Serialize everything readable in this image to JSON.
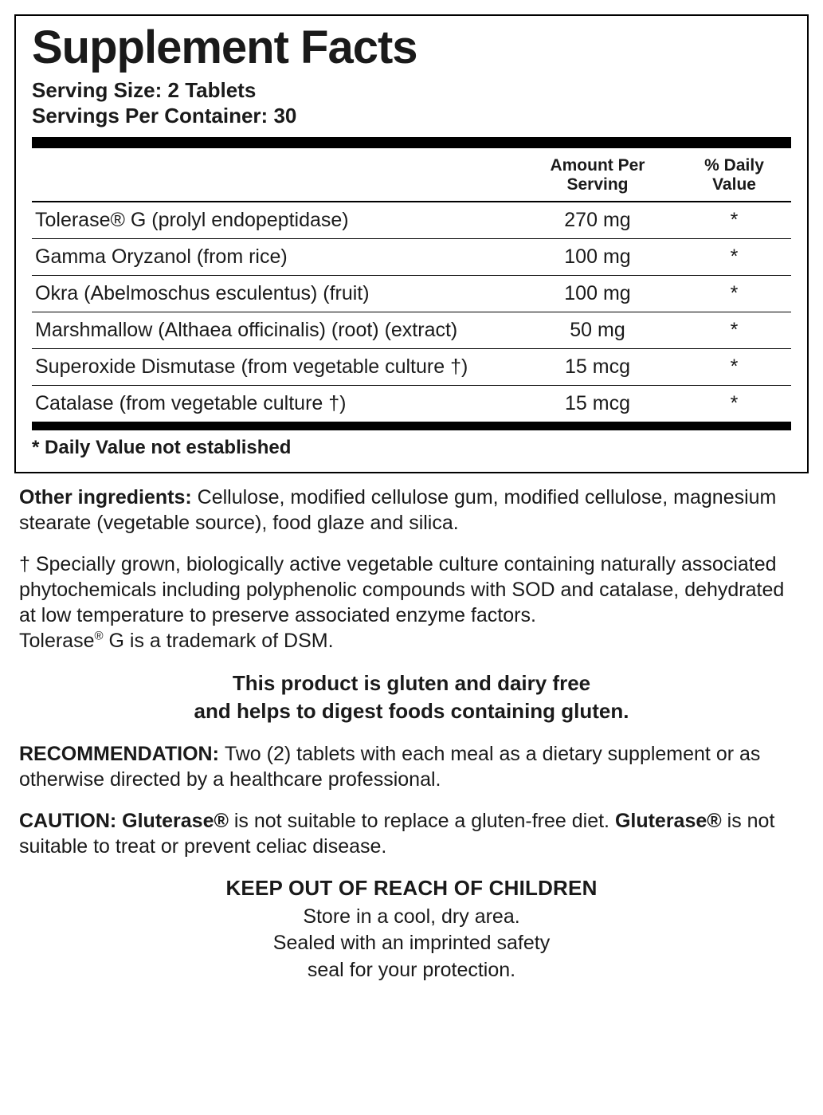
{
  "panel": {
    "title": "Supplement Facts",
    "serving_size_label": "Serving Size:",
    "serving_size_value": "2 Tablets",
    "servings_per_label": "Servings Per Container:",
    "servings_per_value": "30",
    "headers": {
      "name": "",
      "amount_l1": "Amount Per",
      "amount_l2": "Serving",
      "dv_l1": "% Daily",
      "dv_l2": "Value"
    },
    "rows": [
      {
        "name": "Tolerase® G (prolyl endopeptidase)",
        "amount": "270 mg",
        "dv": "*"
      },
      {
        "name": "Gamma Oryzanol (from rice)",
        "amount": "100 mg",
        "dv": "*"
      },
      {
        "name": "Okra (Abelmoschus esculentus) (fruit)",
        "amount": "100 mg",
        "dv": "*"
      },
      {
        "name": "Marshmallow (Althaea officinalis) (root) (extract)",
        "amount": "50 mg",
        "dv": "*"
      },
      {
        "name": "Superoxide Dismutase (from vegetable culture †)",
        "amount": "15 mcg",
        "dv": "*"
      },
      {
        "name": "Catalase (from vegetable culture †)",
        "amount": "15 mcg",
        "dv": "*"
      }
    ],
    "dv_note": "* Daily Value not established"
  },
  "other_ingredients": {
    "label": "Other ingredients: ",
    "text": "Cellulose, modified cellulose gum, modified cellulose, magnesium stearate (vegetable source), food glaze and silica."
  },
  "dagger_note_1": "† Specially grown, biologically active vegetable culture containing naturally associated phytochemicals including polyphenolic compounds with SOD and catalase, dehydrated at low temperature to preserve associated enzyme factors.",
  "dagger_note_2a": "Tolerase",
  "dagger_note_2b": " G is a trademark of DSM.",
  "gfdf_l1": "This product is gluten and dairy free",
  "gfdf_l2": "and helps to digest foods containing gluten.",
  "recommendation": {
    "label": "RECOMMENDATION: ",
    "text": "Two (2) tablets with each meal as a dietary supplement or as otherwise directed by a healthcare professional."
  },
  "caution": {
    "label": "CAUTION: ",
    "brand": "Gluterase®",
    "text1": " is not suitable to replace a gluten-free diet. ",
    "text2": " is not suitable to treat or prevent celiac disease."
  },
  "keepout": {
    "title": "KEEP OUT OF REACH OF CHILDREN",
    "l1": "Store in a cool, dry area.",
    "l2": "Sealed with an imprinted safety",
    "l3": "seal for your protection."
  }
}
